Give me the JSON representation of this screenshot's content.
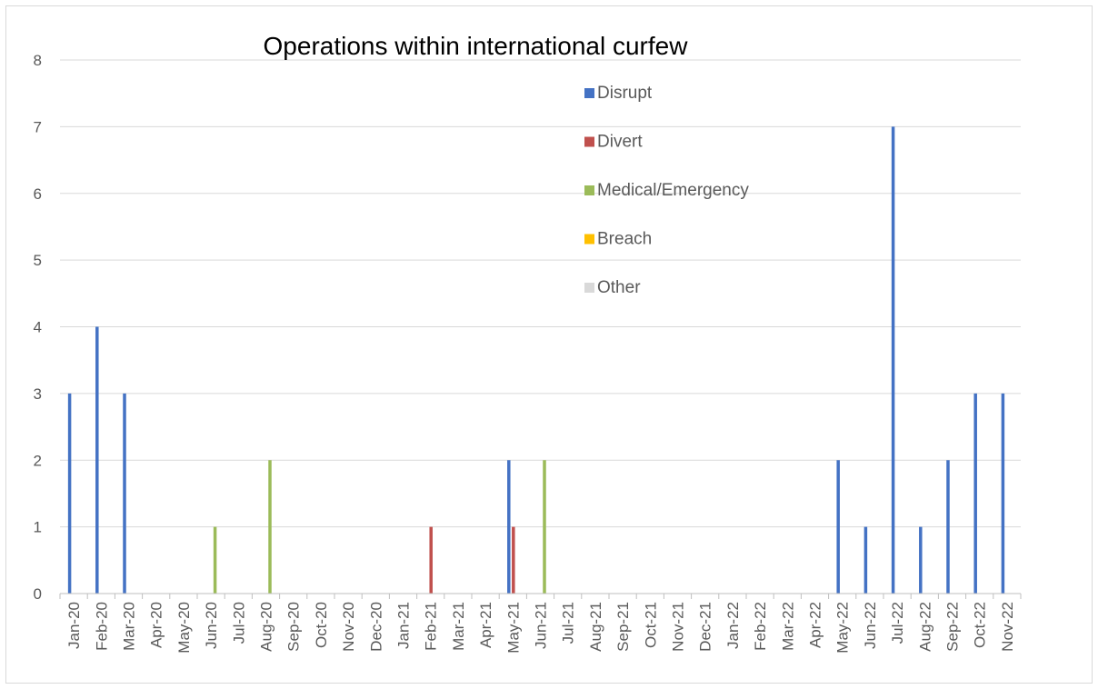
{
  "chart_data": {
    "type": "bar",
    "title": "Operations within international curfew",
    "xlabel": "",
    "ylabel": "",
    "ylim": [
      0,
      8
    ],
    "y_ticks": [
      "0",
      "1",
      "2",
      "3",
      "4",
      "5",
      "6",
      "7",
      "8"
    ],
    "grid": true,
    "legend_position": "top-right (inside plot)",
    "categories": [
      "Jan-20",
      "Feb-20",
      "Mar-20",
      "Apr-20",
      "May-20",
      "Jun-20",
      "Jul-20",
      "Aug-20",
      "Sep-20",
      "Oct-20",
      "Nov-20",
      "Dec-20",
      "Jan-21",
      "Feb-21",
      "Mar-21",
      "Apr-21",
      "May-21",
      "Jun-21",
      "Jul-21",
      "Aug-21",
      "Sep-21",
      "Oct-21",
      "Nov-21",
      "Dec-21",
      "Jan-22",
      "Feb-22",
      "Mar-22",
      "Apr-22",
      "May-22",
      "Jun-22",
      "Jul-22",
      "Aug-22",
      "Sep-22",
      "Oct-22",
      "Nov-22"
    ],
    "series": [
      {
        "name": "Disrupt",
        "color": "#4472c4",
        "values": [
          3,
          4,
          3,
          0,
          0,
          0,
          0,
          0,
          0,
          0,
          0,
          0,
          0,
          0,
          0,
          0,
          2,
          0,
          0,
          0,
          0,
          0,
          0,
          0,
          0,
          0,
          0,
          0,
          2,
          1,
          7,
          1,
          2,
          3,
          3
        ]
      },
      {
        "name": "Divert",
        "color": "#c0504d",
        "values": [
          0,
          0,
          0,
          0,
          0,
          0,
          0,
          0,
          0,
          0,
          0,
          0,
          0,
          1,
          0,
          0,
          1,
          0,
          0,
          0,
          0,
          0,
          0,
          0,
          0,
          0,
          0,
          0,
          0,
          0,
          0,
          0,
          0,
          0,
          0
        ]
      },
      {
        "name": "Medical/Emergency",
        "color": "#9bbb59",
        "values": [
          0,
          0,
          0,
          0,
          0,
          1,
          0,
          2,
          0,
          0,
          0,
          0,
          0,
          0,
          0,
          0,
          0,
          2,
          0,
          0,
          0,
          0,
          0,
          0,
          0,
          0,
          0,
          0,
          0,
          0,
          0,
          0,
          0,
          0,
          0
        ]
      },
      {
        "name": "Breach",
        "color": "#ffc000",
        "values": [
          0,
          0,
          0,
          0,
          0,
          0,
          0,
          0,
          0,
          0,
          0,
          0,
          0,
          0,
          0,
          0,
          0,
          0,
          0,
          0,
          0,
          0,
          0,
          0,
          0,
          0,
          0,
          0,
          0,
          0,
          0,
          0,
          0,
          0,
          0
        ]
      },
      {
        "name": "Other",
        "color": "#d9d9d9",
        "values": [
          0,
          0,
          0,
          0,
          0,
          0,
          0,
          0,
          0,
          0,
          0,
          0,
          0,
          0,
          0,
          0,
          0,
          0,
          0,
          0,
          0,
          0,
          0,
          0,
          0,
          0,
          0,
          0,
          0,
          0,
          0,
          0,
          0,
          0,
          0
        ]
      }
    ],
    "colors": {
      "gridline": "#d9d9d9",
      "axis": "#bfbfbf",
      "tick_text": "#595959"
    }
  }
}
